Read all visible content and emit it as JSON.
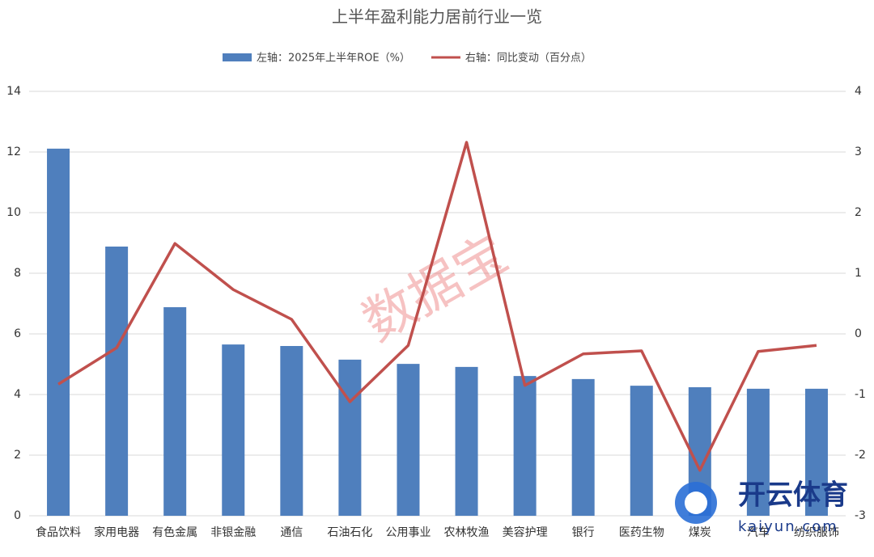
{
  "chart_data": {
    "type": "bar-line",
    "title": "上半年盈利能力居前行业一览",
    "categories": [
      "食品饮料",
      "家用电器",
      "有色金属",
      "非银金融",
      "通信",
      "石油石化",
      "公用事业",
      "农林牧渔",
      "美容护理",
      "银行",
      "医药生物",
      "煤炭",
      "汽车",
      "纺织服饰"
    ],
    "series": [
      {
        "name": "左轴：2025年上半年ROE（%）",
        "color": "#4f7fbd",
        "type": "bar",
        "values": [
          12.11,
          8.88,
          6.88,
          5.65,
          5.6,
          5.15,
          5.01,
          4.91,
          4.61,
          4.51,
          4.29,
          4.24,
          4.19,
          4.19
        ]
      },
      {
        "name": "右轴：同比变动（百分点）",
        "color": "#c0504d",
        "type": "line",
        "axis": "y2",
        "values": [
          -0.83,
          -0.23,
          1.49,
          0.73,
          0.24,
          -1.12,
          -0.19,
          3.16,
          -0.85,
          -0.33,
          -0.28,
          -2.25,
          -0.29,
          -0.19
        ]
      }
    ],
    "ylim": [
      0,
      14
    ],
    "yticks": [
      0,
      2,
      4,
      6,
      8,
      10,
      12,
      14
    ],
    "y2lim": [
      -3,
      4
    ],
    "y2ticks": [
      -3,
      -2,
      -1,
      0,
      1,
      2,
      3,
      4
    ],
    "grid": true,
    "legend": "top",
    "watermark": "数据宝",
    "logo": "开云体育",
    "logo_sub": "kaiyun.com"
  }
}
